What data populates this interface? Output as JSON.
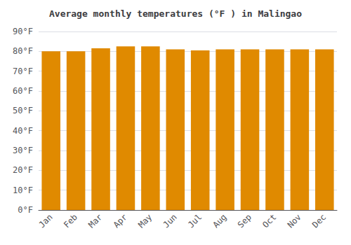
{
  "chart_data": {
    "type": "bar",
    "title": "Average monthly temperatures (°F ) in Malingao",
    "categories": [
      "Jan",
      "Feb",
      "Mar",
      "Apr",
      "May",
      "Jun",
      "Jul",
      "Aug",
      "Sep",
      "Oct",
      "Nov",
      "Dec"
    ],
    "values": [
      80.0,
      80.0,
      81.5,
      82.5,
      82.5,
      81.0,
      80.5,
      81.0,
      81.0,
      81.0,
      81.0,
      81.0
    ],
    "color": "#E08A00",
    "ylim": [
      0,
      90
    ],
    "yticks": [
      {
        "value": 0,
        "label": "0°F"
      },
      {
        "value": 10,
        "label": "10°F"
      },
      {
        "value": 20,
        "label": "20°F"
      },
      {
        "value": 30,
        "label": "30°F"
      },
      {
        "value": 40,
        "label": "40°F"
      },
      {
        "value": 50,
        "label": "50°F"
      },
      {
        "value": 60,
        "label": "60°F"
      },
      {
        "value": 70,
        "label": "70°F"
      },
      {
        "value": 80,
        "label": "80°F"
      },
      {
        "value": 90,
        "label": "90°F"
      }
    ],
    "grid": true
  }
}
